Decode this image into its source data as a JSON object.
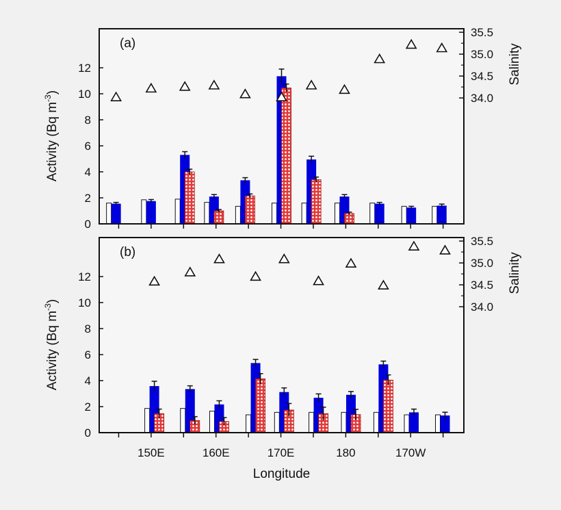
{
  "colors": {
    "background": "#f1f1f1",
    "plot_bg": "#f6f6f6",
    "white_bar": "#ffffff",
    "blue_bar": "#0000dd",
    "red_bar": "#e23a3a",
    "axis": "#111111"
  },
  "chart_data": [
    {
      "panel_label": "(a)",
      "type": "bar",
      "ylabel_main": "Activity (Bq m",
      "ylabel_sup": "-3",
      "ylabel_end": ")",
      "y2label": "Salinity",
      "xlabel": "",
      "ylim": [
        0,
        15
      ],
      "y_ticks": [
        0,
        2,
        4,
        6,
        8,
        10,
        12
      ],
      "y2lim": [
        31.125,
        35.58
      ],
      "y2_ticks": [
        "34.0",
        "34.5",
        "35.0",
        "35.5"
      ],
      "y2_minor_ticks": [
        34.25,
        34.75,
        35.25
      ],
      "xlim": [
        142,
        198.2
      ],
      "x_minor_ticks": [
        145,
        150,
        155,
        160,
        165,
        170,
        175,
        180,
        185,
        190,
        195
      ],
      "x_tick_labels": [],
      "longitudes": [
        144.6,
        150,
        155.2,
        159.7,
        164.5,
        170.1,
        174.7,
        179.8,
        185.2,
        190.1,
        194.8
      ],
      "series": [
        {
          "style": "white",
          "values": [
            1.6,
            1.85,
            1.9,
            1.65,
            1.35,
            1.6,
            1.6,
            1.6,
            1.6,
            1.35,
            1.35
          ],
          "errors": []
        },
        {
          "style": "blue",
          "values": [
            1.55,
            1.75,
            5.3,
            2.1,
            3.35,
            11.35,
            4.95,
            2.1,
            1.55,
            1.25,
            1.4
          ],
          "errors": [
            0.1,
            0.12,
            0.25,
            0.15,
            0.2,
            0.55,
            0.25,
            0.15,
            0.1,
            0.1,
            0.12
          ]
        },
        {
          "style": "red-crosshatch",
          "values": [
            null,
            null,
            4.0,
            1.0,
            2.15,
            10.45,
            3.4,
            0.8,
            null,
            null,
            null
          ],
          "errors": [
            null,
            null,
            0.2,
            0.1,
            0.15,
            0.3,
            0.2,
            0.1,
            null,
            null,
            null
          ]
        }
      ],
      "salinity": [
        34.03,
        34.23,
        34.27,
        34.3,
        34.1,
        34.03,
        34.3,
        34.2,
        34.9,
        35.23,
        35.15
      ]
    },
    {
      "panel_label": "(b)",
      "type": "bar",
      "ylabel_main": "Activity (Bq m",
      "ylabel_sup": "-3",
      "ylabel_end": ")",
      "y2label": "Salinity",
      "xlabel": "Longitude",
      "ylim": [
        0,
        15
      ],
      "y_ticks": [
        0,
        2,
        4,
        6,
        8,
        10,
        12
      ],
      "y2lim": [
        31.125,
        35.58
      ],
      "y2_ticks": [
        "34.0",
        "34.5",
        "35.0",
        "35.5"
      ],
      "y2_minor_ticks": [
        34.25,
        34.75,
        35.25
      ],
      "xlim": [
        142,
        198.2
      ],
      "x_minor_ticks": [
        145,
        150,
        155,
        160,
        165,
        170,
        175,
        180,
        185,
        190,
        195
      ],
      "x_tick_labels": [
        {
          "lon": 150,
          "label": "150E"
        },
        {
          "lon": 160,
          "label": "160E"
        },
        {
          "lon": 170,
          "label": "170E"
        },
        {
          "lon": 180,
          "label": "180"
        },
        {
          "lon": 190,
          "label": "170W"
        }
      ],
      "longitudes": [
        150.5,
        156.0,
        160.5,
        166.1,
        170.5,
        175.8,
        180.8,
        185.8,
        190.5,
        195.3
      ],
      "series": [
        {
          "style": "white",
          "values": [
            1.86,
            1.86,
            1.65,
            1.37,
            1.56,
            1.56,
            1.56,
            1.56,
            1.37,
            1.37
          ],
          "errors": []
        },
        {
          "style": "blue",
          "values": [
            3.58,
            3.35,
            2.17,
            5.35,
            3.12,
            2.68,
            2.91,
            5.25,
            1.56,
            1.32
          ],
          "errors": [
            0.37,
            0.25,
            0.28,
            0.28,
            0.32,
            0.3,
            0.25,
            0.25,
            0.25,
            0.25
          ]
        },
        {
          "style": "red-crosshatch",
          "values": [
            1.46,
            0.93,
            0.86,
            4.14,
            1.74,
            1.46,
            1.39,
            4.04,
            null,
            null
          ],
          "errors": [
            0.35,
            0.3,
            0.3,
            0.4,
            0.5,
            0.5,
            0.4,
            0.4,
            null,
            null
          ]
        }
      ],
      "salinity": [
        34.59,
        34.8,
        35.1,
        34.7,
        35.1,
        34.6,
        35.0,
        34.5,
        35.39,
        35.3
      ]
    }
  ]
}
